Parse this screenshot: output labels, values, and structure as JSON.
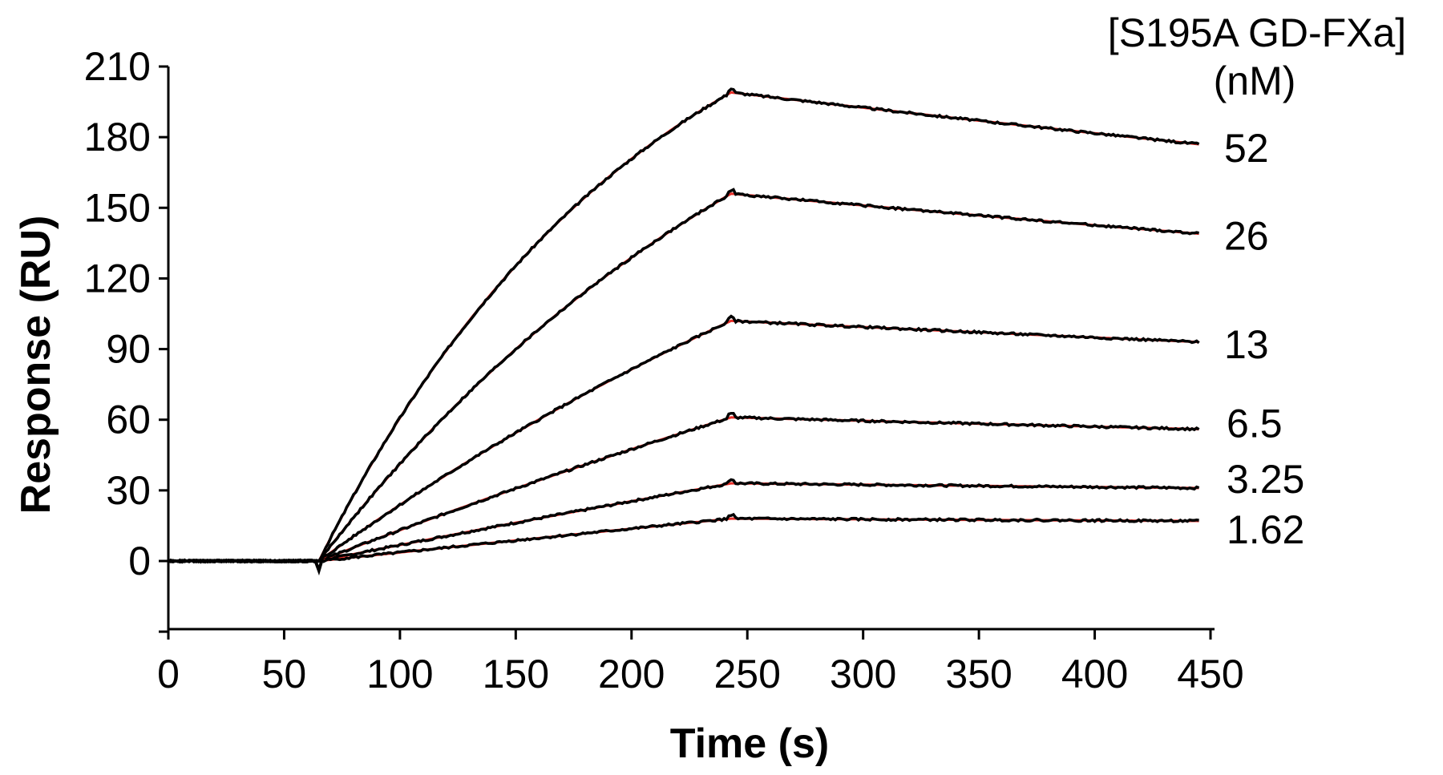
{
  "chart_data": {
    "type": "line",
    "title": "",
    "xlabel": "Time (s)",
    "ylabel": "Response (RU)",
    "xlim": [
      0,
      450
    ],
    "ylim": [
      -30,
      210
    ],
    "xticks": [
      0,
      50,
      100,
      150,
      200,
      250,
      300,
      350,
      400,
      450
    ],
    "yticks": [
      0,
      30,
      60,
      90,
      120,
      150,
      180,
      210
    ],
    "legend_title": [
      "[S195A GD-FXa]",
      "(nM)"
    ],
    "colors": {
      "data": "#000000",
      "fit": "#e8302a"
    },
    "injection_start": 65,
    "injection_end": 243,
    "end_time": 445,
    "series": [
      {
        "name": "52",
        "label": "52",
        "peak": 199,
        "end": 177
      },
      {
        "name": "26",
        "label": "26",
        "peak": 156,
        "end": 139
      },
      {
        "name": "13",
        "label": "13",
        "peak": 102,
        "end": 93
      },
      {
        "name": "6.5",
        "label": "6.5",
        "peak": 61,
        "end": 56
      },
      {
        "name": "3.25",
        "label": "3.25",
        "peak": 33,
        "end": 31
      },
      {
        "name": "1.62",
        "label": "1.62",
        "peak": 18,
        "end": 17
      }
    ],
    "curvature": [
      1.25,
      0.8,
      0.45,
      0.22,
      0.12,
      0.06
    ]
  }
}
